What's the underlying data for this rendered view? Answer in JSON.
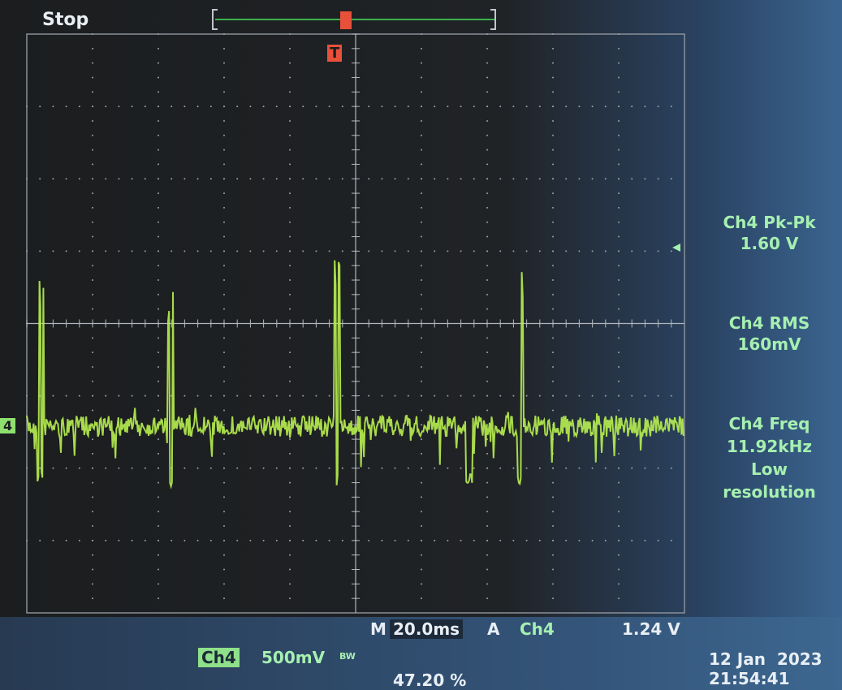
{
  "status": "Stop",
  "trigger_marker": "T",
  "measurements": [
    {
      "label": "Ch4 Pk-Pk",
      "value": "1.60 V"
    },
    {
      "label": "Ch4 RMS",
      "value": "160mV"
    },
    {
      "label": "Ch4 Freq",
      "value": "11.92kHz",
      "notes": [
        "Low",
        "resolution"
      ]
    }
  ],
  "timebase": {
    "prefix": "M",
    "value": "20.0ms"
  },
  "trigger": {
    "prefix": "A",
    "source": "Ch4",
    "level": "1.24 V",
    "position": "47.20 %"
  },
  "channel": {
    "name": "Ch4",
    "scale": "500mV",
    "marker": "4",
    "coupling": "BW"
  },
  "date": "12 Jan  2023",
  "time": "21:54:41"
}
